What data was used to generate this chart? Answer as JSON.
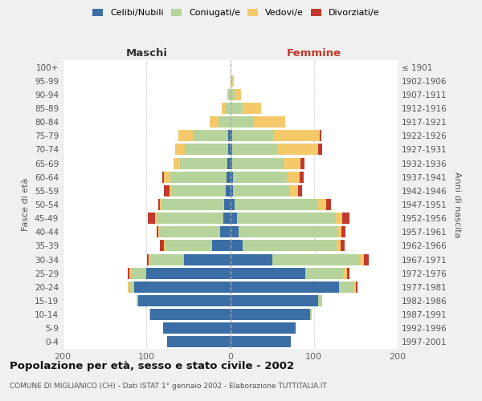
{
  "age_groups": [
    "0-4",
    "5-9",
    "10-14",
    "15-19",
    "20-24",
    "25-29",
    "30-34",
    "35-39",
    "40-44",
    "45-49",
    "50-54",
    "55-59",
    "60-64",
    "65-69",
    "70-74",
    "75-79",
    "80-84",
    "85-89",
    "90-94",
    "95-99",
    "100+"
  ],
  "birth_years": [
    "1997-2001",
    "1992-1996",
    "1987-1991",
    "1982-1986",
    "1977-1981",
    "1972-1976",
    "1967-1971",
    "1962-1966",
    "1957-1961",
    "1952-1956",
    "1947-1951",
    "1942-1946",
    "1937-1941",
    "1932-1936",
    "1927-1931",
    "1922-1926",
    "1917-1921",
    "1912-1916",
    "1907-1911",
    "1902-1906",
    "≤ 1901"
  ],
  "maschi": {
    "celibi": [
      75,
      80,
      95,
      110,
      115,
      100,
      55,
      22,
      12,
      8,
      7,
      5,
      4,
      3,
      2,
      2,
      0,
      0,
      0,
      0,
      0
    ],
    "coniugati": [
      0,
      0,
      1,
      2,
      5,
      18,
      40,
      55,
      72,
      80,
      75,
      65,
      67,
      57,
      52,
      42,
      14,
      6,
      2,
      0,
      0
    ],
    "vedovi": [
      0,
      0,
      0,
      0,
      2,
      2,
      2,
      2,
      2,
      2,
      2,
      2,
      8,
      8,
      12,
      18,
      10,
      4,
      1,
      0,
      0
    ],
    "divorziati": [
      0,
      0,
      0,
      0,
      0,
      2,
      2,
      5,
      2,
      8,
      2,
      7,
      2,
      0,
      0,
      0,
      0,
      0,
      0,
      0,
      0
    ]
  },
  "femmine": {
    "nubili": [
      72,
      78,
      95,
      105,
      130,
      90,
      50,
      15,
      10,
      8,
      5,
      3,
      3,
      2,
      2,
      2,
      0,
      0,
      0,
      0,
      0
    ],
    "coniugate": [
      0,
      0,
      2,
      5,
      18,
      45,
      105,
      112,
      118,
      118,
      100,
      68,
      65,
      62,
      55,
      50,
      28,
      15,
      5,
      2,
      0
    ],
    "vedove": [
      0,
      0,
      0,
      0,
      2,
      5,
      5,
      5,
      5,
      8,
      10,
      10,
      15,
      20,
      48,
      55,
      38,
      22,
      8,
      2,
      0
    ],
    "divorziate": [
      0,
      0,
      0,
      0,
      2,
      2,
      5,
      5,
      5,
      8,
      5,
      5,
      5,
      5,
      5,
      2,
      0,
      0,
      0,
      0,
      0
    ]
  },
  "colors": {
    "celibi_nubili": "#3a6ea5",
    "coniugati": "#b5d39b",
    "vedovi": "#f5c96a",
    "divorziati": "#c0392b"
  },
  "title": "Popolazione per età, sesso e stato civile - 2002",
  "subtitle": "COMUNE DI MIGLIANICO (CH) - Dati ISTAT 1° gennaio 2002 - Elaborazione TUTTITALIA.IT",
  "xlabel_left": "Maschi",
  "xlabel_right": "Femmine",
  "ylabel_left": "Fasce di età",
  "ylabel_right": "Anni di nascita",
  "xlim": 200,
  "bg_color": "#f0f0f0",
  "plot_bg": "#ffffff"
}
